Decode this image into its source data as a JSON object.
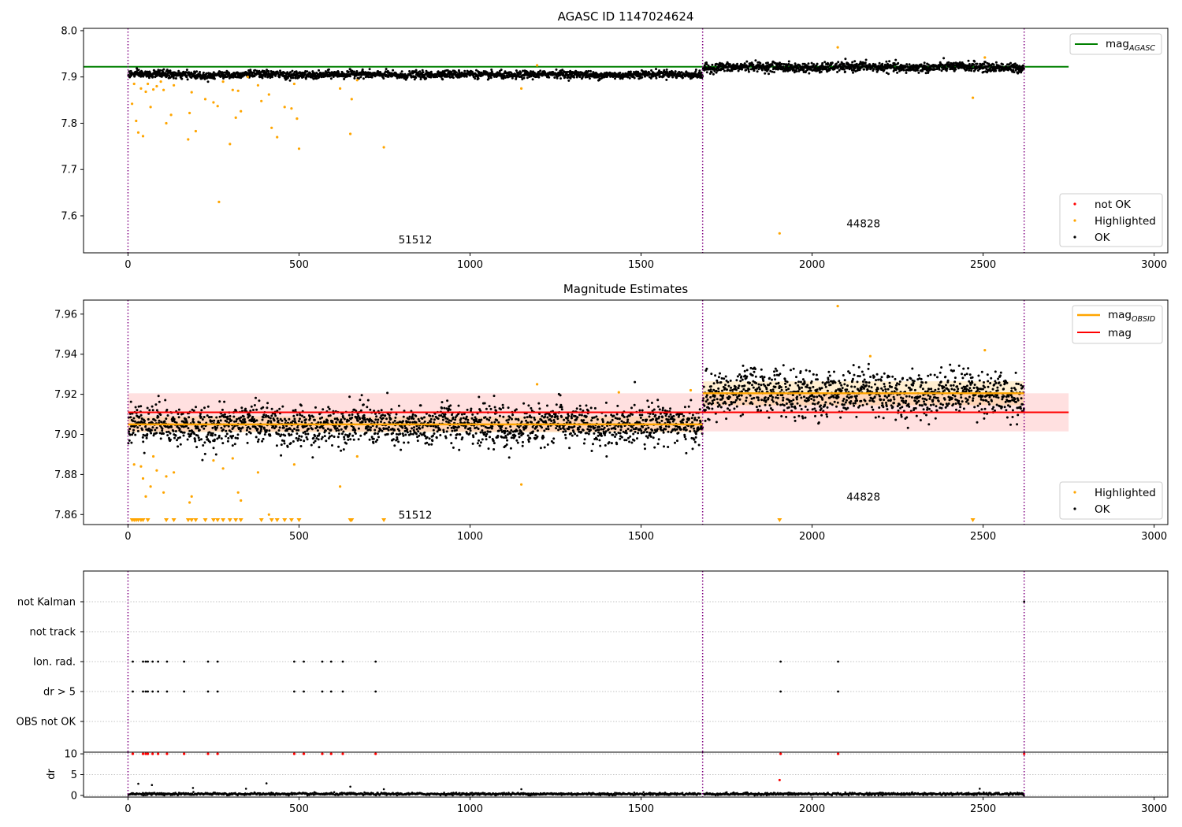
{
  "chart_data": [
    {
      "type": "scatter",
      "title": "AGASC ID 1147024624",
      "xlim": [
        -130,
        3040
      ],
      "ylim": [
        7.52,
        8.005
      ],
      "xticks": [
        0,
        500,
        1000,
        1500,
        2000,
        2500,
        3000
      ],
      "yticks": [
        7.6,
        7.7,
        7.8,
        7.9,
        8.0
      ],
      "ytick_labels": [
        "7.6",
        "7.7",
        "7.8",
        "7.9",
        "8.0"
      ],
      "obsid_boundaries": [
        0,
        1680,
        2620
      ],
      "obsid_annotations": [
        {
          "label": "51512",
          "x": 840,
          "y": 7.54
        },
        {
          "label": "44828",
          "x": 2150,
          "y": 7.575
        }
      ],
      "reference_lines": [
        {
          "name": "mag_AGASC",
          "y": 7.922,
          "x_range": [
            -130,
            2750
          ],
          "color": "#008000"
        }
      ],
      "segments": [
        {
          "x_range": [
            0,
            1680
          ],
          "ok_mean": 7.905,
          "ok_std": 0.004
        },
        {
          "x_range": [
            1680,
            2620
          ],
          "ok_mean": 7.921,
          "ok_std": 0.005
        }
      ],
      "highlighted": [
        {
          "x": 12,
          "y": 7.842
        },
        {
          "x": 18,
          "y": 7.885
        },
        {
          "x": 24,
          "y": 7.805
        },
        {
          "x": 30,
          "y": 7.78
        },
        {
          "x": 38,
          "y": 7.875
        },
        {
          "x": 44,
          "y": 7.772
        },
        {
          "x": 52,
          "y": 7.868
        },
        {
          "x": 58,
          "y": 7.885
        },
        {
          "x": 66,
          "y": 7.835
        },
        {
          "x": 74,
          "y": 7.873
        },
        {
          "x": 84,
          "y": 7.88
        },
        {
          "x": 96,
          "y": 7.89
        },
        {
          "x": 104,
          "y": 7.872
        },
        {
          "x": 112,
          "y": 7.8
        },
        {
          "x": 126,
          "y": 7.818
        },
        {
          "x": 134,
          "y": 7.882
        },
        {
          "x": 176,
          "y": 7.765
        },
        {
          "x": 180,
          "y": 7.822
        },
        {
          "x": 186,
          "y": 7.867
        },
        {
          "x": 198,
          "y": 7.783
        },
        {
          "x": 226,
          "y": 7.852
        },
        {
          "x": 250,
          "y": 7.845
        },
        {
          "x": 262,
          "y": 7.837
        },
        {
          "x": 266,
          "y": 7.63
        },
        {
          "x": 278,
          "y": 7.89
        },
        {
          "x": 298,
          "y": 7.755
        },
        {
          "x": 306,
          "y": 7.872
        },
        {
          "x": 315,
          "y": 7.812
        },
        {
          "x": 322,
          "y": 7.87
        },
        {
          "x": 330,
          "y": 7.826
        },
        {
          "x": 350,
          "y": 7.9
        },
        {
          "x": 380,
          "y": 7.882
        },
        {
          "x": 390,
          "y": 7.848
        },
        {
          "x": 412,
          "y": 7.862
        },
        {
          "x": 420,
          "y": 7.79
        },
        {
          "x": 436,
          "y": 7.77
        },
        {
          "x": 458,
          "y": 7.835
        },
        {
          "x": 478,
          "y": 7.832
        },
        {
          "x": 486,
          "y": 7.885
        },
        {
          "x": 494,
          "y": 7.81
        },
        {
          "x": 500,
          "y": 7.745
        },
        {
          "x": 620,
          "y": 7.875
        },
        {
          "x": 650,
          "y": 7.777
        },
        {
          "x": 654,
          "y": 7.852
        },
        {
          "x": 670,
          "y": 7.893
        },
        {
          "x": 748,
          "y": 7.748
        },
        {
          "x": 1150,
          "y": 7.875
        },
        {
          "x": 1196,
          "y": 7.925
        },
        {
          "x": 1905,
          "y": 7.562
        },
        {
          "x": 2075,
          "y": 7.964
        },
        {
          "x": 2470,
          "y": 7.855
        },
        {
          "x": 2505,
          "y": 7.942
        }
      ],
      "not_ok": [],
      "legends": [
        {
          "position": "top-right",
          "entries": [
            {
              "label": "mag",
              "subscript": "AGASC",
              "kind": "line",
              "color": "#008000"
            }
          ]
        },
        {
          "position": "lower-right",
          "entries": [
            {
              "label": "not OK",
              "kind": "point",
              "color": "#ff0000"
            },
            {
              "label": "Highlighted",
              "kind": "point",
              "color": "#ffa500"
            },
            {
              "label": "OK",
              "kind": "point",
              "color": "#000000"
            }
          ]
        }
      ]
    },
    {
      "type": "scatter",
      "title": "Magnitude Estimates",
      "xlim": [
        -130,
        3040
      ],
      "ylim": [
        7.855,
        7.967
      ],
      "xticks": [
        0,
        500,
        1000,
        1500,
        2000,
        2500,
        3000
      ],
      "yticks": [
        7.86,
        7.88,
        7.9,
        7.92,
        7.94,
        7.96
      ],
      "ytick_labels": [
        "7.86",
        "7.88",
        "7.90",
        "7.92",
        "7.94",
        "7.96"
      ],
      "obsid_boundaries": [
        0,
        1680,
        2620
      ],
      "obsid_annotations": [
        {
          "label": "51512",
          "x": 840,
          "y": 7.858
        },
        {
          "label": "44828",
          "x": 2150,
          "y": 7.867
        }
      ],
      "reference_lines": [
        {
          "name": "mag",
          "y": 7.911,
          "x_range": [
            0,
            2750
          ],
          "color": "#ff0000",
          "band": [
            7.9015,
            7.9205
          ]
        }
      ],
      "obsid_mags": [
        {
          "x_range": [
            0,
            1680
          ],
          "mag": 7.905,
          "band": [
            7.901,
            7.909
          ]
        },
        {
          "x_range": [
            1680,
            2620
          ],
          "mag": 7.9205,
          "band": [
            7.9145,
            7.9265
          ]
        }
      ],
      "segments": [
        {
          "x_range": [
            0,
            1680
          ],
          "ok_mean": 7.9045,
          "ok_std": 0.0048
        },
        {
          "x_range": [
            1680,
            2620
          ],
          "ok_mean": 7.9205,
          "ok_std": 0.0055
        }
      ],
      "highlighted": [
        {
          "x": 18,
          "y": 7.885
        },
        {
          "x": 38,
          "y": 7.884
        },
        {
          "x": 44,
          "y": 7.878
        },
        {
          "x": 52,
          "y": 7.869
        },
        {
          "x": 66,
          "y": 7.874
        },
        {
          "x": 74,
          "y": 7.889
        },
        {
          "x": 84,
          "y": 7.882
        },
        {
          "x": 104,
          "y": 7.871
        },
        {
          "x": 112,
          "y": 7.879
        },
        {
          "x": 134,
          "y": 7.881
        },
        {
          "x": 180,
          "y": 7.866
        },
        {
          "x": 186,
          "y": 7.869
        },
        {
          "x": 250,
          "y": 7.887
        },
        {
          "x": 278,
          "y": 7.883
        },
        {
          "x": 306,
          "y": 7.888
        },
        {
          "x": 322,
          "y": 7.871
        },
        {
          "x": 330,
          "y": 7.867
        },
        {
          "x": 380,
          "y": 7.881
        },
        {
          "x": 412,
          "y": 7.86
        },
        {
          "x": 486,
          "y": 7.885
        },
        {
          "x": 620,
          "y": 7.874
        },
        {
          "x": 670,
          "y": 7.889
        },
        {
          "x": 1150,
          "y": 7.875
        },
        {
          "x": 1196,
          "y": 7.925
        },
        {
          "x": 1435,
          "y": 7.921
        },
        {
          "x": 1645,
          "y": 7.922
        },
        {
          "x": 2075,
          "y": 7.964
        },
        {
          "x": 2170,
          "y": 7.939
        },
        {
          "x": 2505,
          "y": 7.942
        }
      ],
      "below_range_markers": [
        12,
        18,
        24,
        30,
        38,
        44,
        58,
        112,
        134,
        176,
        186,
        198,
        226,
        250,
        262,
        278,
        298,
        315,
        330,
        390,
        420,
        436,
        458,
        478,
        500,
        650,
        654,
        748,
        1905,
        2470
      ],
      "legends": [
        {
          "position": "top-right",
          "entries": [
            {
              "label": "mag",
              "subscript": "OBSID",
              "kind": "line",
              "color": "#ffa500"
            },
            {
              "label": "mag",
              "kind": "line",
              "color": "#ff0000"
            }
          ]
        },
        {
          "position": "lower-right",
          "entries": [
            {
              "label": "Highlighted",
              "kind": "point",
              "color": "#ffa500"
            },
            {
              "label": "OK",
              "kind": "point",
              "color": "#000000"
            }
          ]
        }
      ]
    },
    {
      "type": "scatter",
      "title": "",
      "xlim": [
        -130,
        3040
      ],
      "categories": [
        "not Kalman",
        "not track",
        "Ion. rad.",
        "dr > 5",
        "OBS not OK"
      ],
      "flags": {
        "not Kalman": [
          2620
        ],
        "not track": [],
        "Ion. rad.": [
          14,
          44,
          52,
          58,
          72,
          88,
          114,
          164,
          234,
          262,
          486,
          514,
          568,
          594,
          628,
          724,
          1908,
          2076
        ],
        "dr > 5": [
          14,
          44,
          52,
          58,
          72,
          88,
          114,
          164,
          234,
          262,
          486,
          514,
          568,
          594,
          628,
          724,
          1908,
          2076
        ],
        "OBS not OK": []
      },
      "obsid_boundaries": [
        0,
        1680,
        2620
      ]
    },
    {
      "type": "scatter",
      "title": "",
      "ylabel": "dr",
      "xlim": [
        -130,
        3040
      ],
      "ylim": [
        -0.4,
        10.4
      ],
      "xticks": [
        0,
        500,
        1000,
        1500,
        2000,
        2500,
        3000
      ],
      "yticks": [
        0,
        5,
        10
      ],
      "ytick_labels": [
        "0",
        "5",
        "10"
      ],
      "obsid_boundaries": [
        0,
        1680,
        2620
      ],
      "clipped_points_at_10": [
        14,
        44,
        52,
        58,
        72,
        88,
        114,
        164,
        234,
        262,
        486,
        514,
        568,
        594,
        628,
        724,
        1908,
        2076,
        2620
      ],
      "extra_points": [
        {
          "x": 30,
          "y": 2.8
        },
        {
          "x": 70,
          "y": 2.5
        },
        {
          "x": 190,
          "y": 1.8
        },
        {
          "x": 345,
          "y": 1.6
        },
        {
          "x": 405,
          "y": 2.9
        },
        {
          "x": 650,
          "y": 2.1
        },
        {
          "x": 748,
          "y": 1.5
        },
        {
          "x": 1150,
          "y": 1.5
        },
        {
          "x": 1905,
          "y": 3.7
        },
        {
          "x": 2490,
          "y": 1.6
        }
      ],
      "typical_dr": 0.35
    }
  ]
}
